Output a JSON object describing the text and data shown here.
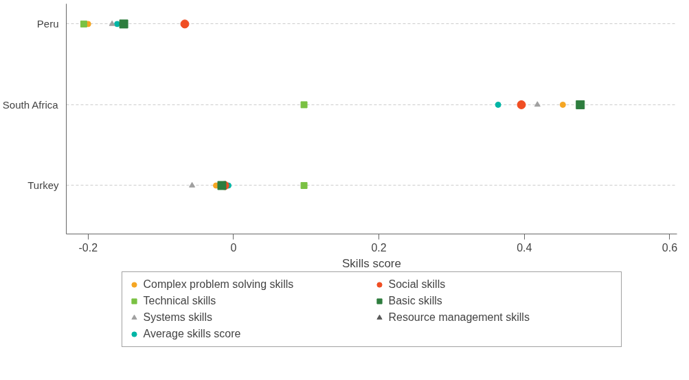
{
  "chart_data": {
    "type": "scatter",
    "xlabel": "Skills score",
    "categories": [
      "Peru",
      "South Africa",
      "Turkey"
    ],
    "orientation": "horizontal",
    "xlim": [
      -0.23,
      0.61
    ],
    "xticks": [
      -0.2,
      0,
      0.2,
      0.4,
      0.6
    ],
    "grid": "y",
    "legend": "bottom",
    "series": [
      {
        "name": "Complex problem solving skills",
        "color": "#f5a623",
        "marker": "circle",
        "values": [
          -0.2,
          0.453,
          -0.024
        ]
      },
      {
        "name": "Social skills",
        "color": "#f04e23",
        "marker": "circle",
        "values": [
          -0.067,
          0.396,
          -0.012
        ]
      },
      {
        "name": "Technical skills",
        "color": "#7ac143",
        "marker": "square",
        "values": [
          -0.206,
          0.097,
          0.097
        ]
      },
      {
        "name": "Basic skills",
        "color": "#2e7d3e",
        "marker": "square",
        "values": [
          -0.151,
          0.477,
          -0.016
        ]
      },
      {
        "name": "Systems skills",
        "color": "#a0a0a0",
        "marker": "triangle",
        "values": [
          -0.167,
          0.418,
          -0.057
        ]
      },
      {
        "name": "Resource management skills",
        "color": "#5a5a5a",
        "marker": "triangle",
        "values": [
          null,
          null,
          null
        ]
      },
      {
        "name": "Average skills score",
        "color": "#00b5a5",
        "marker": "circle",
        "values": [
          -0.16,
          0.364,
          -0.007
        ]
      }
    ]
  }
}
